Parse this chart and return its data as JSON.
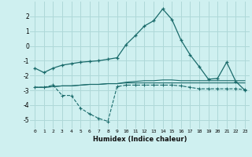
{
  "xlabel": "Humidex (Indice chaleur)",
  "x": [
    0,
    1,
    2,
    3,
    4,
    5,
    6,
    7,
    8,
    9,
    10,
    11,
    12,
    13,
    14,
    15,
    16,
    17,
    18,
    19,
    20,
    21,
    22,
    23
  ],
  "line1": [
    -1.5,
    -1.8,
    -1.5,
    -1.3,
    -1.2,
    -1.1,
    -1.05,
    -1.0,
    -0.9,
    -0.8,
    0.1,
    0.7,
    1.35,
    1.7,
    2.5,
    1.8,
    0.4,
    -0.6,
    -1.4,
    -2.25,
    -2.2,
    -1.1,
    -2.4,
    -3.0
  ],
  "line2": [
    -2.8,
    -2.8,
    -2.65,
    -3.35,
    -3.35,
    -4.2,
    -4.6,
    -4.9,
    -5.1,
    -2.75,
    -2.65,
    -2.65,
    -2.65,
    -2.65,
    -2.65,
    -2.65,
    -2.7,
    -2.8,
    -2.9,
    -2.9,
    -2.9,
    -2.9,
    -2.9,
    -2.95
  ],
  "line3": [
    -2.8,
    -2.8,
    -2.75,
    -2.7,
    -2.7,
    -2.65,
    -2.6,
    -2.6,
    -2.55,
    -2.55,
    -2.5,
    -2.5,
    -2.5,
    -2.5,
    -2.5,
    -2.5,
    -2.5,
    -2.5,
    -2.5,
    -2.5,
    -2.5,
    -2.5,
    -2.5,
    -2.5
  ],
  "line4": [
    -2.8,
    -2.8,
    -2.75,
    -2.7,
    -2.7,
    -2.65,
    -2.6,
    -2.6,
    -2.55,
    -2.55,
    -2.45,
    -2.4,
    -2.35,
    -2.35,
    -2.3,
    -2.3,
    -2.35,
    -2.35,
    -2.35,
    -2.35,
    -2.35,
    -2.35,
    -2.35,
    -2.35
  ],
  "bg_color": "#cff0f0",
  "grid_color": "#aed8d8",
  "line_color": "#1a6b6b",
  "ylim": [
    -5.6,
    3.0
  ],
  "yticks": [
    -5,
    -4,
    -3,
    -2,
    -1,
    0,
    1,
    2
  ],
  "xticks": [
    0,
    1,
    2,
    3,
    4,
    5,
    6,
    7,
    8,
    9,
    10,
    11,
    12,
    13,
    14,
    15,
    16,
    17,
    18,
    19,
    20,
    21,
    22,
    23
  ],
  "xlim": [
    -0.5,
    23.5
  ]
}
